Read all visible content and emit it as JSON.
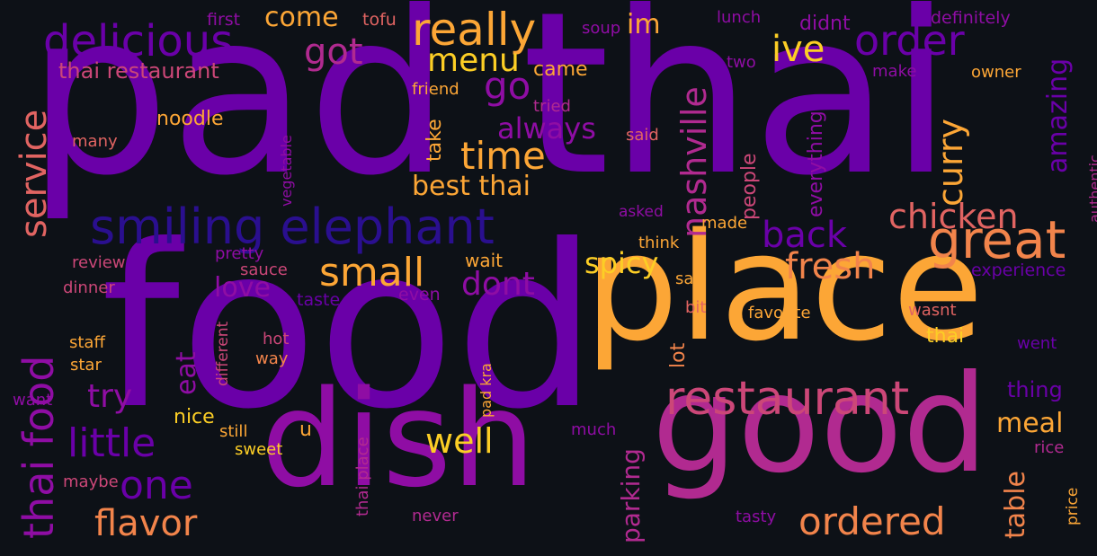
{
  "title": "",
  "background": "#0d1117",
  "palette": {
    "deep_violet": "#4b00a0",
    "violet": "#6a00a8",
    "purple": "#8f0da4",
    "magenta": "#b12a90",
    "pink": "#cc4778",
    "coral": "#e16462",
    "orange": "#f2844b",
    "amber": "#fca636",
    "yellow": "#fcce25",
    "lemon": "#f0f921",
    "navy": "#2a0f8f"
  },
  "words": [
    {
      "text": "pad thai"
    },
    {
      "text": "food"
    },
    {
      "text": "place"
    },
    {
      "text": "good"
    },
    {
      "text": "dish"
    },
    {
      "text": "smiling elephant"
    },
    {
      "text": "restaurant"
    },
    {
      "text": "great"
    },
    {
      "text": "delicious"
    },
    {
      "text": "order"
    },
    {
      "text": "really"
    },
    {
      "text": "thai food"
    },
    {
      "text": "service"
    },
    {
      "text": "little"
    },
    {
      "text": "nashville"
    },
    {
      "text": "ordered"
    },
    {
      "text": "flavor"
    },
    {
      "text": "chicken"
    },
    {
      "text": "fresh"
    },
    {
      "text": "small"
    },
    {
      "text": "back"
    },
    {
      "text": "curry"
    },
    {
      "text": "time"
    },
    {
      "text": "one"
    },
    {
      "text": "ive"
    },
    {
      "text": "go"
    },
    {
      "text": "got"
    },
    {
      "text": "menu"
    },
    {
      "text": "best thai"
    },
    {
      "text": "dont"
    },
    {
      "text": "try"
    },
    {
      "text": "love"
    },
    {
      "text": "well"
    },
    {
      "text": "spicy"
    },
    {
      "text": "amazing"
    },
    {
      "text": "meal"
    },
    {
      "text": "table"
    },
    {
      "text": "parking"
    },
    {
      "text": "always"
    },
    {
      "text": "come"
    },
    {
      "text": "im"
    },
    {
      "text": "eat"
    },
    {
      "text": "thai restaurant"
    },
    {
      "text": "noodle"
    },
    {
      "text": "came"
    },
    {
      "text": "people"
    },
    {
      "text": "everything"
    },
    {
      "text": "take"
    },
    {
      "text": "lot"
    },
    {
      "text": "thai"
    },
    {
      "text": "thing"
    },
    {
      "text": "nice"
    },
    {
      "text": "wait"
    },
    {
      "text": "didnt"
    },
    {
      "text": "definitely"
    },
    {
      "text": "lunch"
    },
    {
      "text": "first"
    },
    {
      "text": "tofu"
    },
    {
      "text": "soup"
    },
    {
      "text": "two"
    },
    {
      "text": "make"
    },
    {
      "text": "owner"
    },
    {
      "text": "friend"
    },
    {
      "text": "tried"
    },
    {
      "text": "said"
    },
    {
      "text": "many"
    },
    {
      "text": "vegetable"
    },
    {
      "text": "asked"
    },
    {
      "text": "made"
    },
    {
      "text": "think"
    },
    {
      "text": "pretty"
    },
    {
      "text": "review"
    },
    {
      "text": "sauce"
    },
    {
      "text": "dinner"
    },
    {
      "text": "taste"
    },
    {
      "text": "even"
    },
    {
      "text": "different"
    },
    {
      "text": "say"
    },
    {
      "text": "bit"
    },
    {
      "text": "favorite"
    },
    {
      "text": "wasnt"
    },
    {
      "text": "experience"
    },
    {
      "text": "authentic"
    },
    {
      "text": "went"
    },
    {
      "text": "staff"
    },
    {
      "text": "star"
    },
    {
      "text": "hot"
    },
    {
      "text": "way"
    },
    {
      "text": "want"
    },
    {
      "text": "u"
    },
    {
      "text": "still"
    },
    {
      "text": "sweet"
    },
    {
      "text": "pad kra"
    },
    {
      "text": "thai place"
    },
    {
      "text": "much"
    },
    {
      "text": "rice"
    },
    {
      "text": "price"
    },
    {
      "text": "maybe"
    },
    {
      "text": "never"
    },
    {
      "text": "tasty"
    }
  ]
}
